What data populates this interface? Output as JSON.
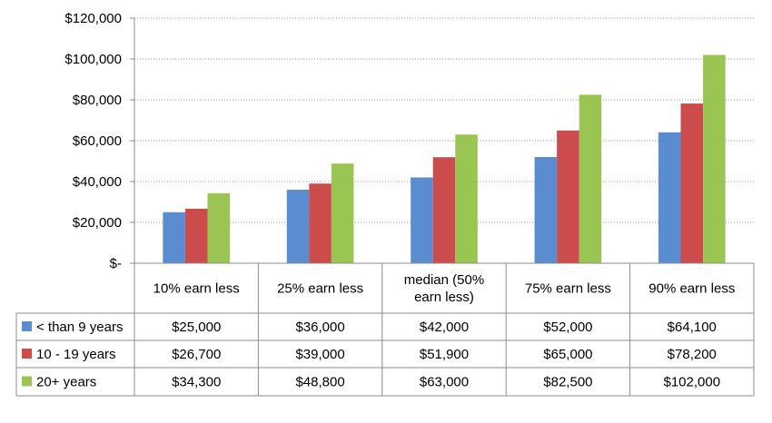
{
  "chart_data": {
    "type": "bar",
    "categories": [
      "10% earn less",
      "25% earn less",
      "median (50% earn less)",
      "75% earn less",
      "90% earn less"
    ],
    "category_lines": [
      [
        "10% earn less"
      ],
      [
        "25% earn less"
      ],
      [
        "median (50%",
        "earn less)"
      ],
      [
        "75% earn less"
      ],
      [
        "90% earn less"
      ]
    ],
    "series": [
      {
        "name": "< than 9 years",
        "color": "#5b8ccf",
        "values": [
          25000,
          36000,
          42000,
          52000,
          64100
        ],
        "table_values": [
          "$25,000",
          "$36,000",
          "$42,000",
          "$52,000",
          "$64,100"
        ]
      },
      {
        "name": "10 - 19 years",
        "color": "#cc4b4c",
        "values": [
          26700,
          39000,
          51900,
          65000,
          78200
        ],
        "table_values": [
          "$26,700",
          "$39,000",
          "$51,900",
          "$65,000",
          "$78,200"
        ]
      },
      {
        "name": "20+ years",
        "color": "#9bc553",
        "values": [
          34300,
          48800,
          63000,
          82500,
          102000
        ],
        "table_values": [
          "$34,300",
          "$48,800",
          "$63,000",
          "$82,500",
          "$102,000"
        ]
      }
    ],
    "yticks": [
      0,
      20000,
      40000,
      60000,
      80000,
      100000,
      120000
    ],
    "ytick_labels": [
      "$-",
      "$20,000",
      "$40,000",
      "$60,000",
      "$80,000",
      "$100,000",
      "$120,000"
    ],
    "ylim": [
      0,
      120000
    ],
    "grid": true,
    "grid_style": "dotted",
    "legend": "data-table",
    "title": "",
    "xlabel": "",
    "ylabel": ""
  }
}
